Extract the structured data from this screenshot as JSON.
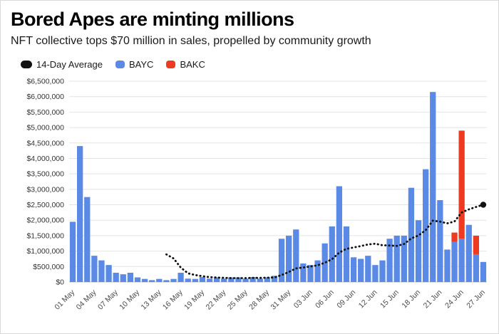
{
  "header": {
    "title": "Bored Apes are minting millions",
    "subtitle": "NFT collective tops $70 million in sales, propelled by community growth"
  },
  "legend": [
    {
      "label": "14-Day Average",
      "color": "#111111",
      "shape": "pill"
    },
    {
      "label": "BAYC",
      "color": "#5a8ae6",
      "shape": "square"
    },
    {
      "label": "BAKC",
      "color": "#ee3a20",
      "shape": "square"
    }
  ],
  "chart_data": {
    "type": "bar",
    "stacked": true,
    "title": "Bored Apes are minting millions",
    "subtitle": "NFT collective tops $70 million in sales, propelled by community growth",
    "ylim": [
      0,
      6500000
    ],
    "ytick_interval": 500000,
    "ytick_format": "$#,###",
    "xtick_every": 3,
    "grid": true,
    "legend_position": "top",
    "x": [
      "01 May",
      "02 May",
      "03 May",
      "04 May",
      "05 May",
      "06 May",
      "07 May",
      "08 May",
      "09 May",
      "10 May",
      "11 May",
      "12 May",
      "13 May",
      "14 May",
      "15 May",
      "16 May",
      "17 May",
      "18 May",
      "19 May",
      "20 May",
      "21 May",
      "22 May",
      "23 May",
      "24 May",
      "25 May",
      "26 May",
      "27 May",
      "28 May",
      "29 May",
      "30 May",
      "31 May",
      "01 Jun",
      "02 Jun",
      "03 Jun",
      "04 Jun",
      "05 Jun",
      "06 Jun",
      "07 Jun",
      "08 Jun",
      "09 Jun",
      "10 Jun",
      "11 Jun",
      "12 Jun",
      "13 Jun",
      "14 Jun",
      "15 Jun",
      "16 Jun",
      "17 Jun",
      "18 Jun",
      "19 Jun",
      "20 Jun",
      "21 Jun",
      "22 Jun",
      "23 Jun",
      "24 Jun",
      "25 Jun",
      "26 Jun",
      "27 Jun"
    ],
    "series": [
      {
        "name": "BAYC",
        "color": "#5a8ae6",
        "values": [
          1950000,
          4400000,
          2750000,
          850000,
          700000,
          550000,
          300000,
          250000,
          300000,
          150000,
          100000,
          60000,
          100000,
          60000,
          100000,
          300000,
          110000,
          100000,
          160000,
          110000,
          150000,
          110000,
          150000,
          150000,
          110000,
          160000,
          110000,
          150000,
          200000,
          1400000,
          1500000,
          1700000,
          600000,
          550000,
          700000,
          1250000,
          1800000,
          3100000,
          1800000,
          800000,
          750000,
          850000,
          550000,
          700000,
          1400000,
          1500000,
          1500000,
          3050000,
          2000000,
          3650000,
          6150000,
          2650000,
          1050000,
          1300000,
          1400000,
          1850000,
          900000,
          650000
        ]
      },
      {
        "name": "BAKC",
        "color": "#ee3a20",
        "values": [
          0,
          0,
          0,
          0,
          0,
          0,
          0,
          0,
          0,
          0,
          0,
          0,
          0,
          0,
          0,
          0,
          0,
          0,
          0,
          0,
          0,
          0,
          0,
          0,
          0,
          0,
          0,
          0,
          0,
          0,
          0,
          0,
          0,
          0,
          0,
          0,
          0,
          0,
          0,
          0,
          0,
          0,
          0,
          0,
          0,
          0,
          0,
          0,
          0,
          0,
          0,
          0,
          0,
          300000,
          3500000,
          0,
          600000,
          0
        ]
      }
    ],
    "line_series": {
      "name": "14-Day Average",
      "color": "#111111",
      "style": "dotted",
      "values": [
        null,
        null,
        null,
        null,
        null,
        null,
        null,
        null,
        null,
        null,
        null,
        null,
        null,
        894000,
        762000,
        469000,
        281000,
        227000,
        189000,
        157000,
        146000,
        136000,
        126000,
        126000,
        126000,
        134000,
        134000,
        141000,
        148000,
        226000,
        326000,
        440000,
        471000,
        503000,
        542000,
        624000,
        741000,
        952000,
        1073000,
        1119000,
        1164000,
        1214000,
        1239000,
        1189000,
        1182000,
        1168000,
        1232000,
        1411000,
        1504000,
        1675000,
        1986000,
        1954000,
        1900000,
        1957000,
        2250000,
        2350000,
        2430000,
        2500000
      ]
    }
  }
}
